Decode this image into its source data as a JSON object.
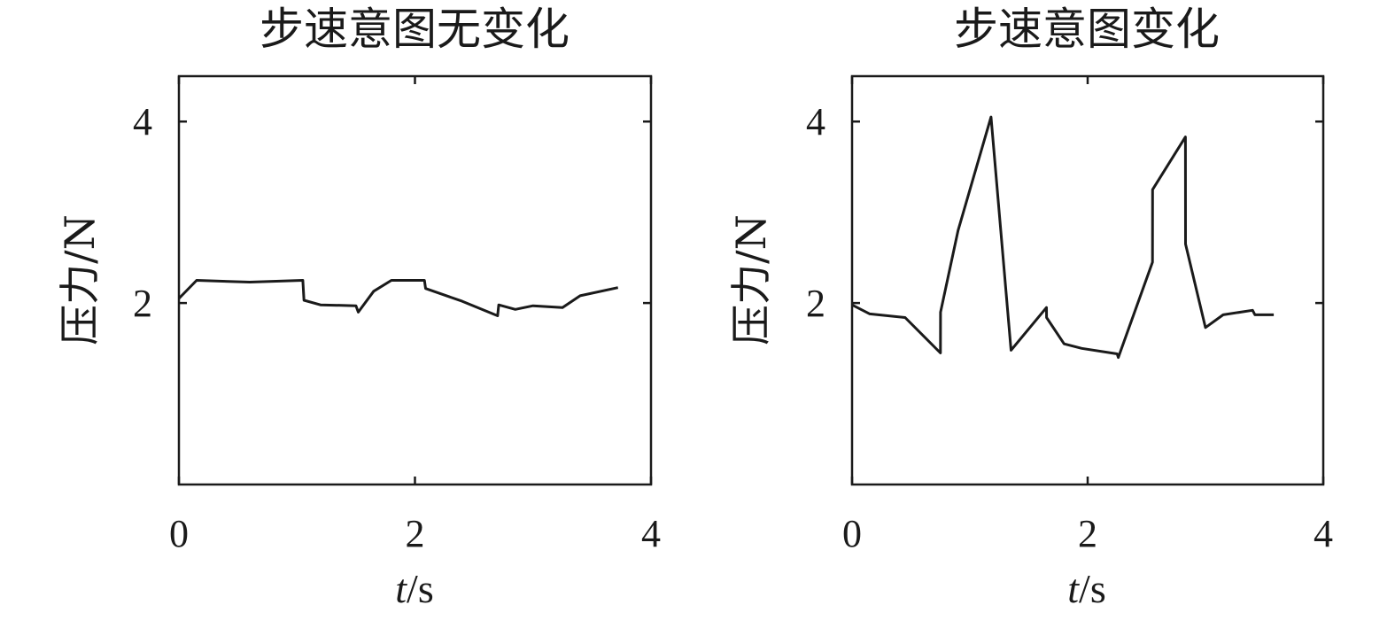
{
  "chart_data": [
    {
      "type": "line",
      "title": "步速意图无变化",
      "xlabel_italic": "t",
      "xlabel_unit": "/s",
      "ylabel": "压力/N",
      "xlim": [
        0,
        4
      ],
      "ylim": [
        0,
        4.5
      ],
      "xticks": [
        0,
        2,
        4
      ],
      "yticks": [
        2,
        4
      ],
      "grid": false,
      "series": [
        {
          "x": [
            0,
            0.15,
            0.6,
            1.05,
            1.06,
            1.2,
            1.5,
            1.52,
            1.65,
            1.8,
            2.08,
            2.09,
            2.4,
            2.7,
            2.71,
            2.85,
            3.0,
            3.25,
            3.4,
            3.72
          ],
          "values": [
            2.05,
            2.25,
            2.23,
            2.25,
            2.03,
            1.98,
            1.97,
            1.9,
            2.13,
            2.25,
            2.25,
            2.16,
            2.02,
            1.86,
            1.98,
            1.93,
            1.97,
            1.95,
            2.08,
            2.17
          ]
        }
      ]
    },
    {
      "type": "line",
      "title": "步速意图变化",
      "xlabel_italic": "t",
      "xlabel_unit": "/s",
      "ylabel": "压力/N",
      "xlim": [
        0,
        4
      ],
      "ylim": [
        0,
        4.5
      ],
      "xticks": [
        0,
        2,
        4
      ],
      "yticks": [
        2,
        4
      ],
      "grid": false,
      "series": [
        {
          "x": [
            0,
            0.15,
            0.45,
            0.75,
            0.751,
            0.9,
            1.18,
            1.35,
            1.65,
            1.651,
            1.8,
            1.95,
            2.25,
            2.26,
            2.55,
            2.551,
            2.83,
            2.831,
            3.0,
            3.15,
            3.4,
            3.42,
            3.58
          ],
          "values": [
            1.98,
            1.88,
            1.84,
            1.45,
            1.9,
            2.8,
            4.05,
            1.48,
            1.95,
            1.84,
            1.55,
            1.5,
            1.44,
            1.4,
            2.45,
            3.25,
            3.83,
            2.65,
            1.73,
            1.87,
            1.92,
            1.87,
            1.87
          ]
        }
      ]
    }
  ]
}
